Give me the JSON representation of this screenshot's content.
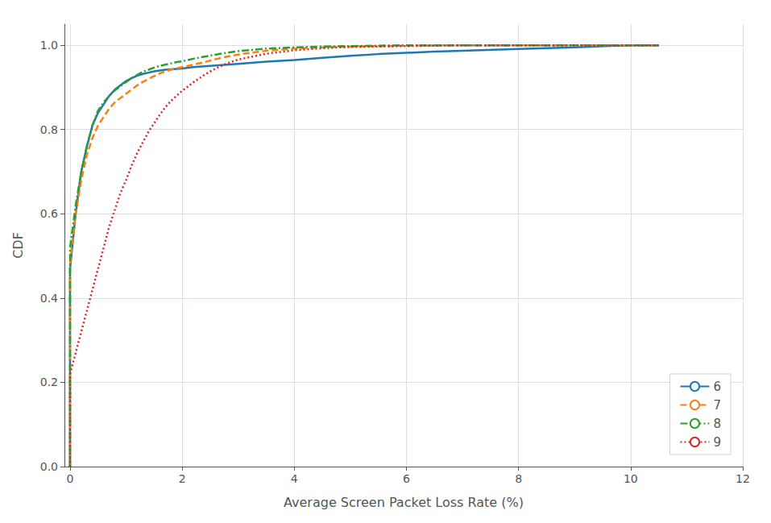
{
  "chart_data": {
    "type": "line",
    "xlabel": "Average Screen Packet Loss Rate (%)",
    "ylabel": "CDF",
    "xlim": [
      -0.1,
      12
    ],
    "ylim": [
      0.0,
      1.05
    ],
    "xticks": [
      0,
      2,
      4,
      6,
      8,
      10,
      12
    ],
    "yticks": [
      {
        "value": 0.0,
        "label": "0.0"
      },
      0.2,
      0.4,
      0.6,
      0.8,
      {
        "value": 1.0,
        "label": "1.0"
      }
    ],
    "grid": true,
    "legend": "lower right",
    "series": [
      {
        "name": "6",
        "color": "#1f77b4",
        "line_style": "solid",
        "x": [
          0.0,
          0.0,
          0.1,
          0.2,
          0.3,
          0.4,
          0.5,
          0.6,
          0.7,
          0.8,
          0.9,
          1.0,
          1.1,
          1.2,
          1.3,
          1.4,
          1.5,
          1.6,
          1.7,
          1.8,
          1.9,
          2.0,
          2.2,
          2.4,
          2.6,
          2.8,
          3.0,
          3.5,
          4.0,
          4.5,
          5.0,
          5.5,
          6.0,
          6.5,
          7.0,
          8.0,
          9.0,
          10.0,
          10.5
        ],
        "values": [
          0.0,
          0.47,
          0.6,
          0.7,
          0.76,
          0.81,
          0.84,
          0.86,
          0.88,
          0.895,
          0.905,
          0.915,
          0.922,
          0.928,
          0.932,
          0.935,
          0.938,
          0.94,
          0.942,
          0.943,
          0.944,
          0.945,
          0.948,
          0.95,
          0.952,
          0.954,
          0.956,
          0.961,
          0.965,
          0.97,
          0.975,
          0.979,
          0.982,
          0.985,
          0.987,
          0.991,
          0.995,
          1.0,
          1.0
        ]
      },
      {
        "name": "7",
        "color": "#ff7f0e",
        "line_style": "dashed",
        "x": [
          0.0,
          0.0,
          0.1,
          0.2,
          0.3,
          0.4,
          0.5,
          0.6,
          0.7,
          0.8,
          0.9,
          1.0,
          1.1,
          1.2,
          1.3,
          1.4,
          1.5,
          1.6,
          1.7,
          1.8,
          1.9,
          2.0,
          2.2,
          2.4,
          2.6,
          2.8,
          3.0,
          3.5,
          4.0,
          4.5,
          5.0,
          5.5,
          6.0,
          7.0,
          8.0,
          9.0,
          10.0,
          10.5
        ],
        "values": [
          0.0,
          0.48,
          0.6,
          0.68,
          0.74,
          0.78,
          0.81,
          0.83,
          0.85,
          0.865,
          0.875,
          0.885,
          0.895,
          0.905,
          0.913,
          0.92,
          0.927,
          0.933,
          0.938,
          0.942,
          0.945,
          0.948,
          0.954,
          0.96,
          0.967,
          0.973,
          0.978,
          0.987,
          0.992,
          0.995,
          0.997,
          0.998,
          0.999,
          1.0,
          1.0,
          1.0,
          1.0,
          1.0
        ]
      },
      {
        "name": "8",
        "color": "#2ca02c",
        "line_style": "dashdot",
        "x": [
          0.0,
          0.0,
          0.1,
          0.2,
          0.3,
          0.4,
          0.5,
          0.6,
          0.7,
          0.8,
          0.9,
          1.0,
          1.1,
          1.2,
          1.3,
          1.4,
          1.5,
          1.6,
          1.7,
          1.8,
          1.9,
          2.0,
          2.2,
          2.4,
          2.6,
          2.8,
          3.0,
          3.5,
          4.0,
          4.5,
          5.0,
          5.5,
          6.0,
          7.0,
          8.0,
          9.0,
          9.5,
          10.0,
          10.5
        ],
        "values": [
          0.0,
          0.52,
          0.62,
          0.7,
          0.76,
          0.81,
          0.845,
          0.865,
          0.88,
          0.893,
          0.903,
          0.913,
          0.922,
          0.93,
          0.937,
          0.942,
          0.947,
          0.951,
          0.954,
          0.957,
          0.96,
          0.962,
          0.968,
          0.973,
          0.978,
          0.982,
          0.986,
          0.992,
          0.995,
          0.997,
          0.998,
          0.999,
          1.0,
          1.0,
          1.0,
          1.0,
          1.0,
          1.0,
          1.0
        ]
      },
      {
        "name": "9",
        "color": "#d62728",
        "line_style": "dotted",
        "x": [
          0.0,
          0.0,
          0.1,
          0.2,
          0.3,
          0.4,
          0.5,
          0.6,
          0.7,
          0.8,
          0.9,
          1.0,
          1.1,
          1.2,
          1.3,
          1.4,
          1.5,
          1.6,
          1.7,
          1.8,
          1.9,
          2.0,
          2.2,
          2.4,
          2.6,
          2.8,
          3.0,
          3.5,
          4.0,
          4.5,
          5.0,
          5.5,
          6.0,
          6.5,
          7.0,
          8.0,
          9.0,
          10.0,
          10.5
        ],
        "values": [
          0.0,
          0.22,
          0.27,
          0.32,
          0.37,
          0.42,
          0.47,
          0.52,
          0.57,
          0.61,
          0.65,
          0.68,
          0.715,
          0.745,
          0.77,
          0.795,
          0.815,
          0.835,
          0.853,
          0.868,
          0.88,
          0.892,
          0.912,
          0.93,
          0.945,
          0.957,
          0.966,
          0.98,
          0.988,
          0.993,
          0.996,
          0.997,
          0.998,
          0.999,
          1.0,
          1.0,
          1.0,
          1.0,
          1.0
        ]
      }
    ]
  }
}
